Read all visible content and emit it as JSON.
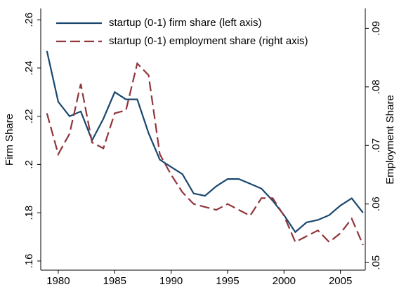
{
  "chart_data": {
    "type": "line",
    "x": [
      1979,
      1980,
      1981,
      1982,
      1983,
      1984,
      1985,
      1986,
      1987,
      1988,
      1989,
      1990,
      1991,
      1992,
      1993,
      1994,
      1995,
      1996,
      1997,
      1998,
      1999,
      2000,
      2001,
      2002,
      2003,
      2004,
      2005,
      2006,
      2007
    ],
    "series": [
      {
        "name": "startup (0-1) firm share (left axis)",
        "color": "#1a476f",
        "axis": "y",
        "values": [
          0.247,
          0.226,
          0.22,
          0.222,
          0.21,
          0.219,
          0.23,
          0.227,
          0.227,
          0.213,
          0.202,
          0.199,
          0.196,
          0.188,
          0.187,
          0.191,
          0.194,
          0.194,
          0.192,
          0.19,
          0.185,
          0.179,
          0.172,
          0.176,
          0.177,
          0.179,
          0.183,
          0.186,
          0.18
        ]
      },
      {
        "name": "startup (0-1) employment share (right axis)",
        "color": "#90353b",
        "axis": "y2",
        "values": [
          0.0755,
          0.0685,
          0.072,
          0.0805,
          0.0705,
          0.0695,
          0.0755,
          0.076,
          0.084,
          0.082,
          0.0685,
          0.065,
          0.062,
          0.06,
          0.0595,
          0.059,
          0.06,
          0.059,
          0.058,
          0.061,
          0.061,
          0.058,
          0.0535,
          0.0545,
          0.0555,
          0.0535,
          0.055,
          0.0575,
          0.053
        ]
      }
    ],
    "ylabel": "Firm Share",
    "y2label": "Employment Share",
    "xlim": [
      1978.45,
      2007.2
    ],
    "xticks": [
      1980,
      1985,
      1990,
      1995,
      2000,
      2005
    ],
    "ylim": [
      0.1562,
      0.2647
    ],
    "yticks": [
      {
        "value": 0.16,
        "label": ".16"
      },
      {
        "value": 0.18,
        "label": ".18"
      },
      {
        "value": 0.2,
        "label": ".2"
      },
      {
        "value": 0.22,
        "label": ".22"
      },
      {
        "value": 0.24,
        "label": ".24"
      },
      {
        "value": 0.26,
        "label": ".26"
      }
    ],
    "y2lim": [
      0.0487,
      0.0934
    ],
    "y2ticks": [
      {
        "value": 0.05,
        "label": ".05"
      },
      {
        "value": 0.06,
        "label": ".06"
      },
      {
        "value": 0.07,
        "label": ".07"
      },
      {
        "value": 0.08,
        "label": ".08"
      },
      {
        "value": 0.09,
        "label": ".09"
      }
    ],
    "legend": "top-right"
  }
}
